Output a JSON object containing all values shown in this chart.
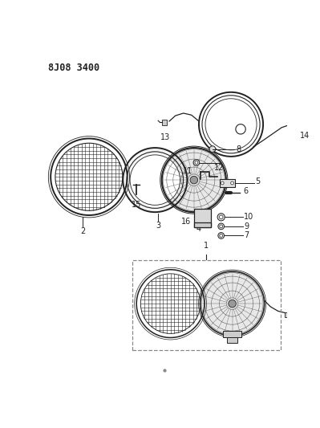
{
  "title": "8J08 3400",
  "bg_color": "#ffffff",
  "line_color": "#222222",
  "fig_width": 3.99,
  "fig_height": 5.33,
  "dpi": 100
}
